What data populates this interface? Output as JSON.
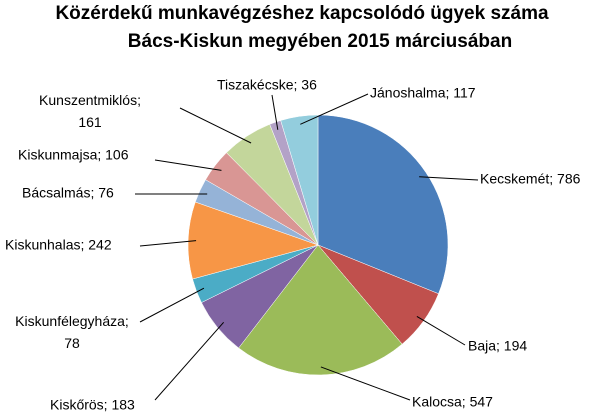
{
  "chart_data": {
    "type": "pie",
    "title": [
      "Közérdekű munkavégzéshez kapcsolódó ügyek száma",
      "Bács-Kiskun megyében 2015 márciusában"
    ],
    "values": [
      786,
      194,
      547,
      183,
      78,
      242,
      76,
      106,
      161,
      36,
      117
    ],
    "value_labels": [
      "Kecskemét; 786",
      "Baja; 194",
      "Kalocsa; 547",
      "Kiskőrös; 183",
      "Kiskunfélegyháza; 78",
      "Kiskunhalas; 242",
      "Bácsalmás; 76",
      "Kiskunmajsa; 106",
      "Kunszentmiklós; 161",
      "Tiszakécske; 36",
      "Jánoshalma; 117"
    ],
    "colors": [
      "#4a7ebb",
      "#c0504d",
      "#9bbb59",
      "#8064a2",
      "#4bacc6",
      "#f79646",
      "#95b3d7",
      "#d99694",
      "#c3d69b",
      "#b3a2c7",
      "#93cddd"
    ]
  }
}
